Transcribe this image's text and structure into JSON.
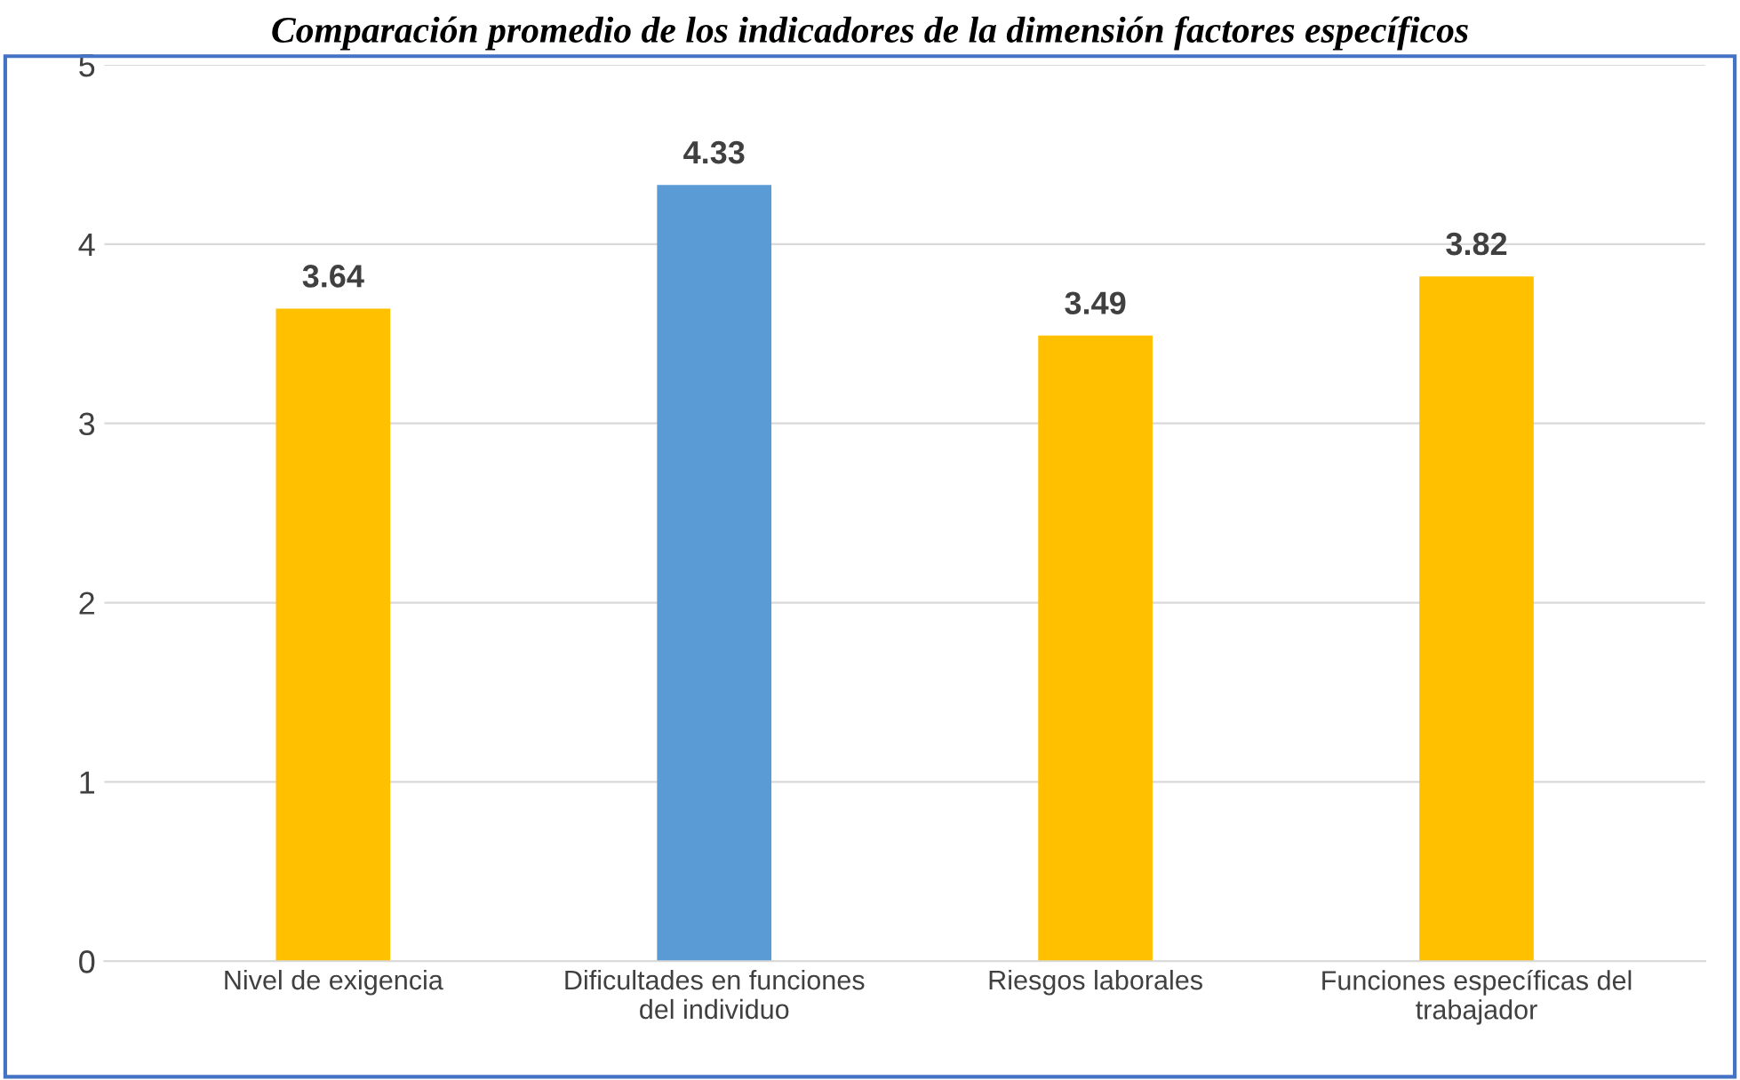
{
  "chart_data": {
    "type": "bar",
    "title": "Comparación promedio de los indicadores de la dimensión factores específicos",
    "categories": [
      "Nivel de exigencia",
      "Dificultades en funciones\ndel individuo",
      "Riesgos laborales",
      "Funciones específicas del\ntrabajador"
    ],
    "values": [
      3.64,
      4.33,
      3.49,
      3.82
    ],
    "colors": [
      "#ffc000",
      "#5b9bd5",
      "#ffc000",
      "#ffc000"
    ],
    "ylim": [
      0,
      5
    ],
    "yticks": [
      0,
      1,
      2,
      3,
      4,
      5
    ],
    "grid": "y",
    "data_labels": true,
    "legend": false
  }
}
